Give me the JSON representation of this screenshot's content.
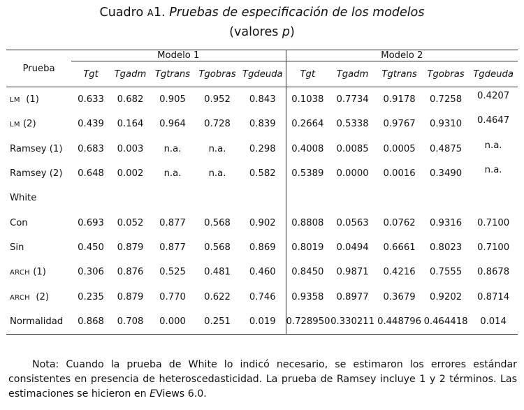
{
  "title": {
    "prefix": "Cuadro ",
    "letter": "A",
    "number": "1.",
    "text": "Pruebas de especificación de los modelos",
    "subtitle_open": "(valores ",
    "subtitle_var": "p",
    "subtitle_close": ")"
  },
  "table": {
    "row_header": "Prueba",
    "groups": [
      "Modelo 1",
      "Modelo 2"
    ],
    "columns": [
      "Tgt",
      "Tgadm",
      "Tgtrans",
      "Tgobras",
      "Tgdeuda",
      "Tgt",
      "Tgadm",
      "Tgtrans",
      "Tgobras",
      "Tgdeuda"
    ],
    "rows": [
      {
        "label": "LM",
        "suffix": "  (1)",
        "smallcaps": true,
        "lift_last": true,
        "values": [
          "0.633",
          "0.682",
          "0.905",
          "0.952",
          "0.843",
          "0.1038",
          "0.7734",
          "0.9178",
          "0.7258",
          "0.4207"
        ]
      },
      {
        "label": "LM",
        "suffix": " (2)",
        "smallcaps": true,
        "lift_last": true,
        "values": [
          "0.439",
          "0.164",
          "0.964",
          "0.728",
          "0.839",
          "0.2664",
          "0.5338",
          "0.9767",
          "0.9310",
          "0.4647"
        ]
      },
      {
        "label": "Ramsey (1)",
        "suffix": "",
        "smallcaps": false,
        "lift_last": true,
        "values": [
          "0.683",
          "0.003",
          "n.a.",
          "n.a.",
          "0.298",
          "0.4008",
          "0.0085",
          "0.0005",
          "0.4875",
          "n.a."
        ]
      },
      {
        "label": "Ramsey (2)",
        "suffix": "",
        "smallcaps": false,
        "lift_last": true,
        "values": [
          "0.648",
          "0.002",
          "n.a.",
          "n.a.",
          "0.582",
          "0.5389",
          "0.0000",
          "0.0016",
          "0.3490",
          "n.a."
        ]
      },
      {
        "label": "White",
        "suffix": "",
        "smallcaps": false,
        "lift_last": false,
        "values": [
          "",
          "",
          "",
          "",
          "",
          "",
          "",
          "",
          "",
          ""
        ]
      },
      {
        "label": "Con",
        "suffix": "",
        "smallcaps": false,
        "lift_last": false,
        "values": [
          "0.693",
          "0.052",
          "0.877",
          "0.568",
          "0.902",
          "0.8808",
          "0.0563",
          "0.0762",
          "0.9316",
          "0.7100"
        ]
      },
      {
        "label": "Sin",
        "suffix": "",
        "smallcaps": false,
        "lift_last": false,
        "values": [
          "0.450",
          "0.879",
          "0.877",
          "0.568",
          "0.869",
          "0.8019",
          "0.0494",
          "0.6661",
          "0.8023",
          "0.7100"
        ]
      },
      {
        "label": "ARCH",
        "suffix": " (1)",
        "smallcaps": true,
        "lift_last": false,
        "values": [
          "0.306",
          "0.876",
          "0.525",
          "0.481",
          "0.460",
          "0.8450",
          "0.9871",
          "0.4216",
          "0.7555",
          "0.8678"
        ]
      },
      {
        "label": "ARCH",
        "suffix": "  (2)",
        "smallcaps": true,
        "lift_last": false,
        "values": [
          "0.235",
          "0.879",
          "0.770",
          "0.622",
          "0.746",
          "0.9358",
          "0.8977",
          "0.3679",
          "0.9202",
          "0.8714"
        ]
      },
      {
        "label": "Normalidad",
        "suffix": "",
        "smallcaps": false,
        "lift_last": false,
        "values": [
          "0.868",
          "0.708",
          "0.000",
          "0.251",
          "0.019",
          "0.728950",
          "0.330211",
          "0.448796",
          "0.464418",
          "0.014"
        ]
      }
    ]
  },
  "note": {
    "part1": "Nota: Cuando la prueba de White lo indicó necesario, se estimaron los errores estándar consistentes en presencia de heteroscedasticidad. La prueba de Ramsey incluye 1 y 2 términos. Las estimaciones se hicieron en ",
    "part2": "E",
    "part3": "Views 6.0."
  }
}
